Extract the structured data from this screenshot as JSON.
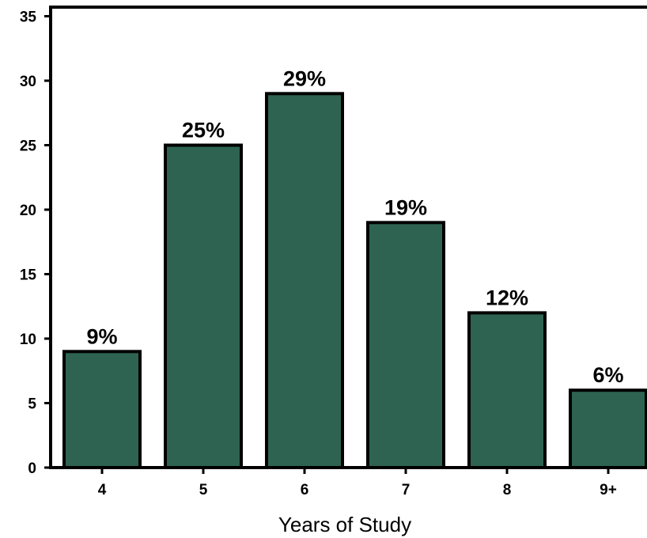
{
  "chart_data": {
    "type": "bar",
    "title": "",
    "xlabel": "Years of Study",
    "ylabel": "",
    "categories": [
      "4",
      "5",
      "6",
      "7",
      "8",
      "9+"
    ],
    "values": [
      9,
      25,
      29,
      19,
      12,
      6
    ],
    "data_labels": [
      "9%",
      "25%",
      "29%",
      "19%",
      "12%",
      "6%"
    ],
    "y_ticks": [
      "0",
      "5",
      "10",
      "15",
      "20",
      "25",
      "30",
      "35"
    ],
    "ylim": [
      0,
      35
    ],
    "grid": false,
    "legend": "none",
    "colors": {
      "bar_fill": "#2e6352",
      "bar_stroke": "#000000",
      "axis": "#000000"
    }
  }
}
